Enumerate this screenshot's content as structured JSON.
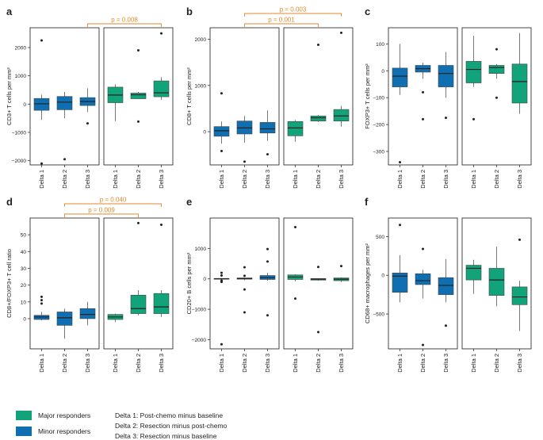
{
  "colors": {
    "major": "#12a37a",
    "minor": "#0f6fb0",
    "annot": "#e08a2c",
    "frame": "#333333"
  },
  "legend": {
    "major_label": "Major responders",
    "minor_label": "Minor responders",
    "deltas": [
      "Delta 1: Post-chemo minus baseline",
      "Delta 2: Resection minus post-chemo",
      "Delta 3: Resection minus baseline"
    ]
  },
  "chart_data": [
    {
      "type": "box",
      "panel": "a",
      "ylabel": "CD3+ T cells per mm²",
      "ylim": [
        -2150,
        2700
      ],
      "yticks": [
        -2000,
        -1000,
        0,
        1000,
        2000
      ],
      "categories": [
        "Delta 1",
        "Delta 2",
        "Delta 3"
      ],
      "groups": [
        {
          "name": "Minor responders",
          "boxes": [
            {
              "q1": -220,
              "median": 10,
              "q3": 200,
              "wlo": -560,
              "whi": 330,
              "outliers": [
                2250,
                -2100
              ]
            },
            {
              "q1": -200,
              "median": 70,
              "q3": 270,
              "wlo": -500,
              "whi": 430,
              "outliers": [
                -1950
              ]
            },
            {
              "q1": -50,
              "median": 90,
              "q3": 230,
              "wlo": -280,
              "whi": 560,
              "outliers": [
                -680
              ]
            }
          ]
        },
        {
          "name": "Major responders",
          "boxes": [
            {
              "q1": 50,
              "median": 320,
              "q3": 600,
              "wlo": -600,
              "whi": 700,
              "outliers": []
            },
            {
              "q1": 190,
              "median": 330,
              "q3": 390,
              "wlo": 200,
              "whi": 430,
              "outliers": [
                1900,
                -620
              ]
            },
            {
              "q1": 260,
              "median": 400,
              "q3": 820,
              "wlo": 150,
              "whi": 950,
              "outliers": [
                2500
              ]
            }
          ]
        }
      ],
      "annotations": [
        {
          "text": "p = 0.008",
          "from": [
            0,
            2
          ],
          "to": [
            1,
            2
          ]
        }
      ]
    },
    {
      "type": "box",
      "panel": "b",
      "ylabel": "CD8+ T cells per mm²",
      "ylim": [
        -720,
        2250
      ],
      "yticks": [
        0,
        1000,
        2000
      ],
      "categories": [
        "Delta 1",
        "Delta 2",
        "Delta 3"
      ],
      "groups": [
        {
          "name": "Minor responders",
          "boxes": [
            {
              "q1": -100,
              "median": 20,
              "q3": 110,
              "wlo": -260,
              "whi": 220,
              "outliers": [
                830,
                -420
              ]
            },
            {
              "q1": -50,
              "median": 80,
              "q3": 230,
              "wlo": -240,
              "whi": 340,
              "outliers": [
                -650
              ]
            },
            {
              "q1": -30,
              "median": 60,
              "q3": 200,
              "wlo": -200,
              "whi": 460,
              "outliers": [
                -490
              ]
            }
          ]
        },
        {
          "name": "Major responders",
          "boxes": [
            {
              "q1": -90,
              "median": 80,
              "q3": 220,
              "wlo": -220,
              "whi": 250,
              "outliers": []
            },
            {
              "q1": 230,
              "median": 300,
              "q3": 340,
              "wlo": 210,
              "whi": 360,
              "outliers": [
                1880
              ]
            },
            {
              "q1": 230,
              "median": 340,
              "q3": 480,
              "wlo": 110,
              "whi": 560,
              "outliers": [
                2140
              ]
            }
          ]
        }
      ],
      "annotations": [
        {
          "text": "p = 0.001",
          "from": [
            0,
            1
          ],
          "to": [
            1,
            1
          ]
        },
        {
          "text": "p = 0.003",
          "from": [
            0,
            1
          ],
          "to": [
            1,
            2
          ]
        }
      ]
    },
    {
      "type": "box",
      "panel": "c",
      "ylabel": "FOXP3+ T cells per mm²",
      "ylim": [
        -350,
        160
      ],
      "yticks": [
        -300,
        -200,
        -100,
        0,
        100
      ],
      "categories": [
        "Delta 1",
        "Delta 2",
        "Delta 3"
      ],
      "groups": [
        {
          "name": "Minor responders",
          "boxes": [
            {
              "q1": -60,
              "median": -20,
              "q3": 10,
              "wlo": -90,
              "whi": 100,
              "outliers": [
                -340
              ]
            },
            {
              "q1": -5,
              "median": 8,
              "q3": 20,
              "wlo": -30,
              "whi": 30,
              "outliers": [
                -80,
                -180
              ]
            },
            {
              "q1": -60,
              "median": -10,
              "q3": 20,
              "wlo": -100,
              "whi": 70,
              "outliers": [
                -175
              ]
            }
          ]
        },
        {
          "name": "Major responders",
          "boxes": [
            {
              "q1": -45,
              "median": 5,
              "q3": 35,
              "wlo": -60,
              "whi": 130,
              "outliers": [
                -180
              ]
            },
            {
              "q1": -10,
              "median": 12,
              "q3": 20,
              "wlo": -30,
              "whi": 25,
              "outliers": [
                80,
                -100
              ]
            },
            {
              "q1": -120,
              "median": -40,
              "q3": 25,
              "wlo": -160,
              "whi": 140,
              "outliers": []
            }
          ]
        }
      ],
      "annotations": []
    },
    {
      "type": "box",
      "panel": "d",
      "ylabel": "CD8+/FOXP3+ T cell ratio",
      "ylim": [
        -18,
        60
      ],
      "yticks": [
        0,
        10,
        20,
        30,
        40,
        50
      ],
      "categories": [
        "Delta 1",
        "Delta 2",
        "Delta 3"
      ],
      "groups": [
        {
          "name": "Minor responders",
          "boxes": [
            {
              "q1": -0.5,
              "median": 1,
              "q3": 2,
              "wlo": -1,
              "whi": 4,
              "outliers": [
                9,
                11,
                13
              ]
            },
            {
              "q1": -4,
              "median": 0.5,
              "q3": 4,
              "wlo": -12,
              "whi": 6,
              "outliers": []
            },
            {
              "q1": 0,
              "median": 2.5,
              "q3": 6,
              "wlo": -4,
              "whi": 10,
              "outliers": []
            }
          ]
        },
        {
          "name": "Major responders",
          "boxes": [
            {
              "q1": -0.5,
              "median": 1,
              "q3": 2.5,
              "wlo": -2,
              "whi": 3,
              "outliers": []
            },
            {
              "q1": 3,
              "median": 6,
              "q3": 14,
              "wlo": 2,
              "whi": 17,
              "outliers": [
                57
              ]
            },
            {
              "q1": 3,
              "median": 7,
              "q3": 15,
              "wlo": 1,
              "whi": 17,
              "outliers": [
                56
              ]
            }
          ]
        }
      ],
      "annotations": [
        {
          "text": "p = 0.009",
          "from": [
            0,
            1
          ],
          "to": [
            1,
            1
          ]
        },
        {
          "text": "p = 0.040",
          "from": [
            0,
            1
          ],
          "to": [
            1,
            2
          ]
        }
      ]
    },
    {
      "type": "box",
      "panel": "e",
      "ylabel": "CD20+ B cells per mm²",
      "ylim": [
        -2300,
        2000
      ],
      "yticks": [
        -2000,
        -1000,
        0,
        1000
      ],
      "categories": [
        "Delta 1",
        "Delta 2",
        "Delta 3"
      ],
      "groups": [
        {
          "name": "Minor responders",
          "boxes": [
            {
              "q1": -10,
              "median": 0,
              "q3": 15,
              "wlo": -30,
              "whi": 30,
              "outliers": [
                200,
                110,
                -60,
                -100,
                -2150
              ]
            },
            {
              "q1": -10,
              "median": 10,
              "q3": 30,
              "wlo": -50,
              "whi": 40,
              "outliers": [
                380,
                100,
                -350,
                -1100
              ]
            },
            {
              "q1": -20,
              "median": 40,
              "q3": 110,
              "wlo": -60,
              "whi": 200,
              "outliers": [
                980,
                570,
                -1200
              ]
            }
          ]
        },
        {
          "name": "Major responders",
          "boxes": [
            {
              "q1": -20,
              "median": 60,
              "q3": 130,
              "wlo": -80,
              "whi": 150,
              "outliers": [
                1700,
                -650
              ]
            },
            {
              "q1": -40,
              "median": -10,
              "q3": 10,
              "wlo": -60,
              "whi": 20,
              "outliers": [
                390,
                -1750
              ]
            },
            {
              "q1": -60,
              "median": -10,
              "q3": 30,
              "wlo": -100,
              "whi": 50,
              "outliers": [
                420
              ]
            }
          ]
        }
      ],
      "annotations": []
    },
    {
      "type": "box",
      "panel": "f",
      "ylabel": "CD68+ macrophages per mm²",
      "ylim": [
        -950,
        740
      ],
      "yticks": [
        -500,
        0,
        500
      ],
      "categories": [
        "Delta 1",
        "Delta 2",
        "Delta 3"
      ],
      "groups": [
        {
          "name": "Minor responders",
          "boxes": [
            {
              "q1": -220,
              "median": -10,
              "q3": 30,
              "wlo": -350,
              "whi": 260,
              "outliers": [
                650
              ]
            },
            {
              "q1": -120,
              "median": -70,
              "q3": 20,
              "wlo": -300,
              "whi": 70,
              "outliers": [
                340,
                -900
              ]
            },
            {
              "q1": -250,
              "median": -130,
              "q3": -30,
              "wlo": -350,
              "whi": 210,
              "outliers": [
                -650
              ]
            }
          ]
        },
        {
          "name": "Major responders",
          "boxes": [
            {
              "q1": -60,
              "median": 90,
              "q3": 130,
              "wlo": -240,
              "whi": 200,
              "outliers": []
            },
            {
              "q1": -260,
              "median": -60,
              "q3": 90,
              "wlo": -400,
              "whi": 370,
              "outliers": []
            },
            {
              "q1": -380,
              "median": -280,
              "q3": -150,
              "wlo": -720,
              "whi": -70,
              "outliers": [
                460
              ]
            }
          ]
        }
      ],
      "annotations": []
    }
  ]
}
